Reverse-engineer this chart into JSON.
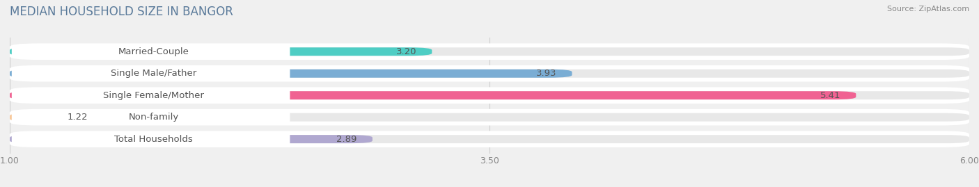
{
  "title": "MEDIAN HOUSEHOLD SIZE IN BANGOR",
  "source": "Source: ZipAtlas.com",
  "categories": [
    "Married-Couple",
    "Single Male/Father",
    "Single Female/Mother",
    "Non-family",
    "Total Households"
  ],
  "values": [
    3.2,
    3.93,
    5.41,
    1.22,
    2.89
  ],
  "colors": [
    "#4ecdc4",
    "#7aadd4",
    "#f06292",
    "#f8c89a",
    "#b0a8d0"
  ],
  "xlim": [
    1.0,
    6.0
  ],
  "xticks": [
    1.0,
    3.5,
    6.0
  ],
  "xtick_labels": [
    "1.00",
    "3.50",
    "6.00"
  ],
  "background_color": "#f0f0f0",
  "bar_row_bg": "#ffffff",
  "bar_inner_bg": "#e8e8e8",
  "label_fontsize": 9.5,
  "title_fontsize": 12,
  "title_color": "#5a7a9a"
}
